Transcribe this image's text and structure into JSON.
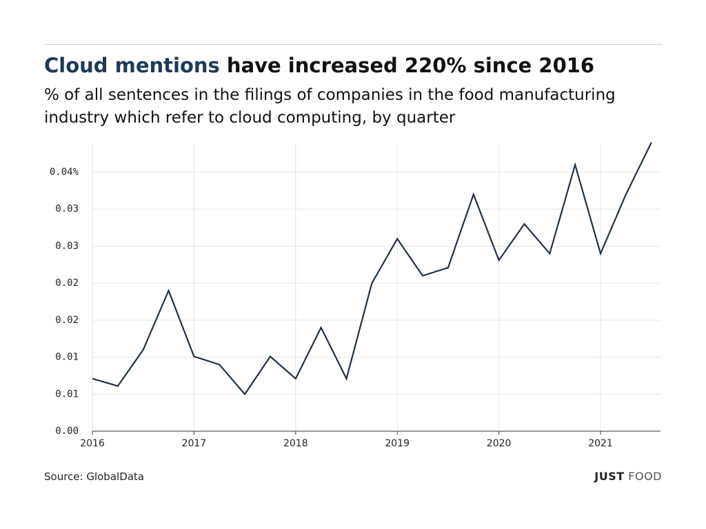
{
  "chart_data": {
    "type": "line",
    "title_highlight": "Cloud mentions",
    "title": "have increased 220% since 2016",
    "subtitle": "% of all sentences in the filings of companies in the food manufacturing industry which refer to cloud computing, by quarter",
    "source": "Source: GlobalData",
    "logo": [
      "JUST",
      "FOOD"
    ],
    "x": [
      2016,
      2016.25,
      2016.5,
      2016.75,
      2017,
      2017.25,
      2017.5,
      2017.75,
      2018,
      2018.25,
      2018.5,
      2018.75,
      2019,
      2019.25,
      2019.5,
      2019.75,
      2020,
      2020.25,
      2020.5,
      2020.75,
      2021,
      2021.25,
      2021.5
    ],
    "series": [
      {
        "color": "#1e3048",
        "values": [
          0.0071,
          0.0061,
          0.011,
          0.019,
          0.0101,
          0.009,
          0.005,
          0.0101,
          0.0071,
          0.014,
          0.0071,
          0.02,
          0.026,
          0.021,
          0.0221,
          0.032,
          0.0231,
          0.028,
          0.024,
          0.036,
          0.024,
          0.032,
          0.039
        ]
      }
    ],
    "xlim": [
      2016,
      2021.59
    ],
    "xticks": [
      2016,
      2017,
      2018,
      2019,
      2020,
      2021
    ],
    "ylim": [
      0,
      0.039
    ],
    "yticks": [
      {
        "value": 0,
        "label": "0.00"
      },
      {
        "value": 0.005,
        "label": "0.01"
      },
      0.01,
      {
        "value": 0.015,
        "label": "0.02"
      },
      0.02,
      {
        "value": 0.025,
        "label": "0.03"
      },
      0.03,
      {
        "value": 0.035,
        "label": "0.04%"
      }
    ],
    "grid": true
  }
}
